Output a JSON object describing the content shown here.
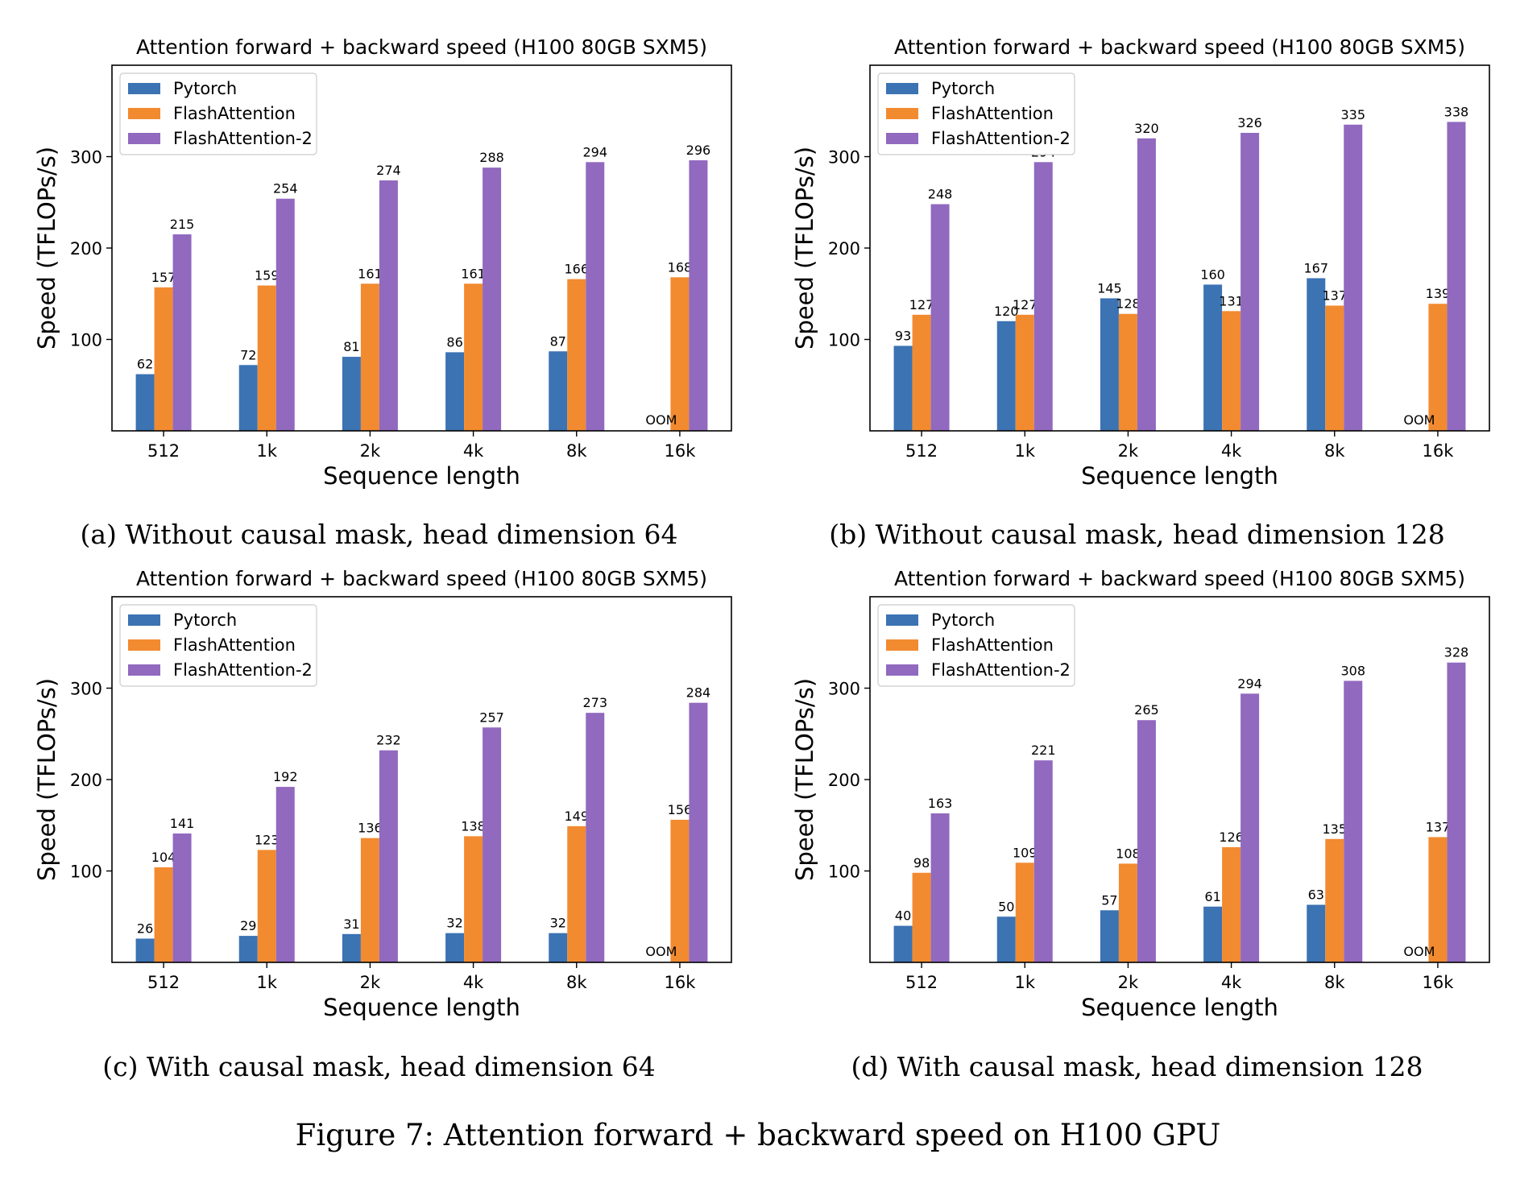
{
  "colors": {
    "pytorch": "#3b73b3",
    "flash": "#f28a30",
    "flash2": "#9169bf"
  },
  "figure_caption": "Figure 7: Attention forward + backward speed on H100 GPU",
  "chart_data": [
    {
      "type": "bar",
      "caption": "(a) Without causal mask, head dimension 64",
      "title": "Attention forward + backward speed (H100 80GB SXM5)",
      "xlabel": "Sequence length",
      "ylabel": "Speed (TFLOPs/s)",
      "ylim": [
        0,
        400
      ],
      "yticks": [
        100,
        200,
        300
      ],
      "legend": "top-left",
      "categories": [
        "512",
        "1k",
        "2k",
        "4k",
        "8k",
        "16k"
      ],
      "series": [
        {
          "name": "Pytorch",
          "values": [
            62,
            72,
            81,
            86,
            87,
            null
          ]
        },
        {
          "name": "FlashAttention",
          "values": [
            157,
            159,
            161,
            161,
            166,
            168
          ]
        },
        {
          "name": "FlashAttention-2",
          "values": [
            215,
            254,
            274,
            288,
            294,
            296
          ]
        }
      ],
      "annotations": [
        {
          "text": "OOM",
          "category": "16k",
          "series": "Pytorch"
        }
      ]
    },
    {
      "type": "bar",
      "caption": "(b) Without causal mask, head dimension 128",
      "title": "Attention forward + backward speed (H100 80GB SXM5)",
      "xlabel": "Sequence length",
      "ylabel": "Speed (TFLOPs/s)",
      "ylim": [
        0,
        400
      ],
      "yticks": [
        100,
        200,
        300
      ],
      "legend": "top-left",
      "categories": [
        "512",
        "1k",
        "2k",
        "4k",
        "8k",
        "16k"
      ],
      "series": [
        {
          "name": "Pytorch",
          "values": [
            93,
            120,
            145,
            160,
            167,
            null
          ]
        },
        {
          "name": "FlashAttention",
          "values": [
            127,
            127,
            128,
            131,
            137,
            139
          ]
        },
        {
          "name": "FlashAttention-2",
          "values": [
            248,
            294,
            320,
            326,
            335,
            338
          ]
        }
      ],
      "annotations": [
        {
          "text": "OOM",
          "category": "16k",
          "series": "Pytorch"
        }
      ]
    },
    {
      "type": "bar",
      "caption": "(c) With causal mask, head dimension 64",
      "title": "Attention forward + backward speed (H100 80GB SXM5)",
      "xlabel": "Sequence length",
      "ylabel": "Speed (TFLOPs/s)",
      "ylim": [
        0,
        400
      ],
      "yticks": [
        100,
        200,
        300
      ],
      "legend": "top-left",
      "categories": [
        "512",
        "1k",
        "2k",
        "4k",
        "8k",
        "16k"
      ],
      "series": [
        {
          "name": "Pytorch",
          "values": [
            26,
            29,
            31,
            32,
            32,
            null
          ]
        },
        {
          "name": "FlashAttention",
          "values": [
            104,
            123,
            136,
            138,
            149,
            156
          ]
        },
        {
          "name": "FlashAttention-2",
          "values": [
            141,
            192,
            232,
            257,
            273,
            284
          ]
        }
      ],
      "annotations": [
        {
          "text": "OOM",
          "category": "16k",
          "series": "Pytorch"
        }
      ]
    },
    {
      "type": "bar",
      "caption": "(d) With causal mask, head dimension 128",
      "title": "Attention forward + backward speed (H100 80GB SXM5)",
      "xlabel": "Sequence length",
      "ylabel": "Speed (TFLOPs/s)",
      "ylim": [
        0,
        400
      ],
      "yticks": [
        100,
        200,
        300
      ],
      "legend": "top-left",
      "categories": [
        "512",
        "1k",
        "2k",
        "4k",
        "8k",
        "16k"
      ],
      "series": [
        {
          "name": "Pytorch",
          "values": [
            40,
            50,
            57,
            61,
            63,
            null
          ]
        },
        {
          "name": "FlashAttention",
          "values": [
            98,
            109,
            108,
            126,
            135,
            137
          ]
        },
        {
          "name": "FlashAttention-2",
          "values": [
            163,
            221,
            265,
            294,
            308,
            328
          ]
        }
      ],
      "annotations": [
        {
          "text": "OOM",
          "category": "16k",
          "series": "Pytorch"
        }
      ]
    }
  ]
}
